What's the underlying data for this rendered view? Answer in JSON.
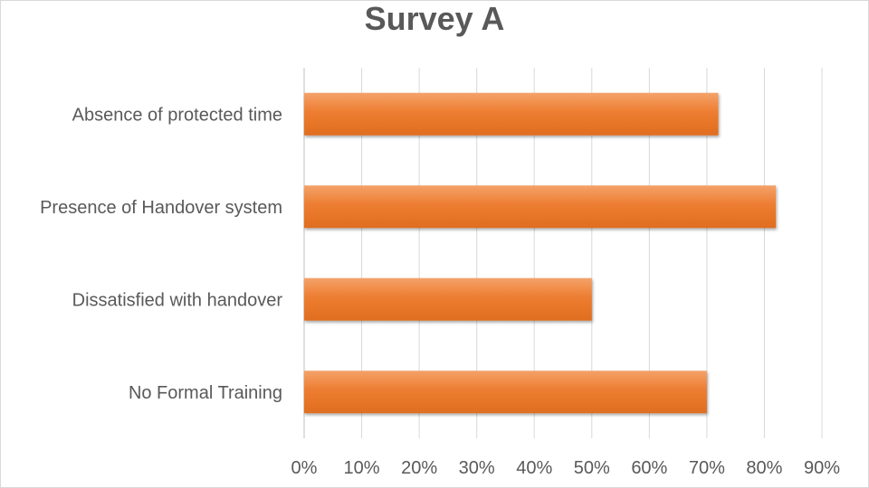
{
  "chart_data": {
    "type": "bar",
    "orientation": "horizontal",
    "title": "Survey A",
    "categories": [
      "Absence of  protected time",
      "Presence of Handover system",
      "Dissatisfied with handover",
      "No Formal Training"
    ],
    "values": [
      0.72,
      0.82,
      0.5,
      0.7
    ],
    "xlim": [
      0,
      0.9
    ],
    "x_ticks": [
      "0%",
      "10%",
      "20%",
      "30%",
      "40%",
      "50%",
      "60%",
      "70%",
      "80%",
      "90%"
    ],
    "grid": true,
    "legend": "none",
    "bar_color": "#ed7d31"
  }
}
